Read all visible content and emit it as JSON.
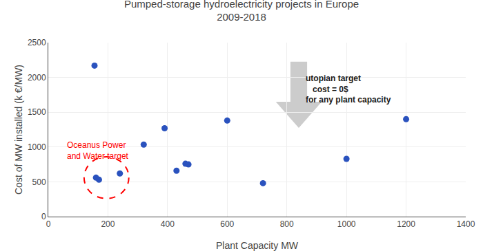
{
  "chart_data": {
    "type": "scatter",
    "title": "Pumped-storage hydroelectricity projects in Europe",
    "subtitle": "2009-2018",
    "x_label": "Plant Capacity MW",
    "y_label": "Cost of MW installed (k €/MW)",
    "x": [
      155,
      160,
      170,
      240,
      320,
      390,
      430,
      460,
      470,
      600,
      720,
      1000,
      1200
    ],
    "values": [
      2170,
      560,
      530,
      620,
      1035,
      1270,
      660,
      760,
      750,
      1380,
      480,
      830,
      1400
    ],
    "color": "#2a52be",
    "marker": "circle",
    "xlim": [
      0,
      1400
    ],
    "ylim": [
      0,
      2500
    ],
    "xticks": [
      0,
      200,
      400,
      600,
      800,
      1000,
      1200,
      1400
    ],
    "yticks": [
      0,
      500,
      1000,
      1500,
      2000,
      2500
    ],
    "grid": true,
    "annotations": [
      {
        "text": "Oceanus Power\nand Water target",
        "color": "red"
      },
      {
        "text": "utopian target\n   cost = 0$\nfor any plant capacity"
      }
    ]
  }
}
